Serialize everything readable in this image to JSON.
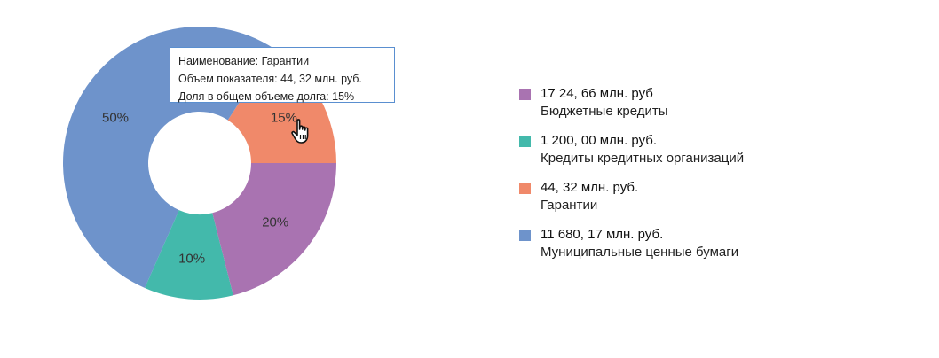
{
  "chart_data": {
    "type": "pie",
    "donut": true,
    "slices": [
      {
        "label": "15%",
        "value": 15,
        "color": "#f0896a",
        "legend_value": "44, 32 млн. руб.",
        "legend_name": "Гарантии"
      },
      {
        "label": "50%",
        "value": 50,
        "color": "#6e93cb",
        "legend_value": "11 680, 17 млн. руб.",
        "legend_name": "Муниципальные ценные бумаги"
      },
      {
        "label": "10%",
        "value": 10,
        "color": "#43b9ab",
        "legend_value": "1 200, 00 млн. руб.",
        "legend_name": "Кредиты  кредитных организаций"
      },
      {
        "label": "20%",
        "value": 20,
        "color": "#a973b1",
        "legend_value": "17 24, 66 млн. руб",
        "legend_name": "Бюджетные кредиты"
      }
    ],
    "legend_order": [
      3,
      2,
      0,
      1
    ],
    "legend_position": "right"
  },
  "tooltip": {
    "line1": "Наименование: Гарантии",
    "line2": "Объем показателя: 44, 32 млн. руб.",
    "line3": "Доля в общем объеме долга: 15%"
  }
}
